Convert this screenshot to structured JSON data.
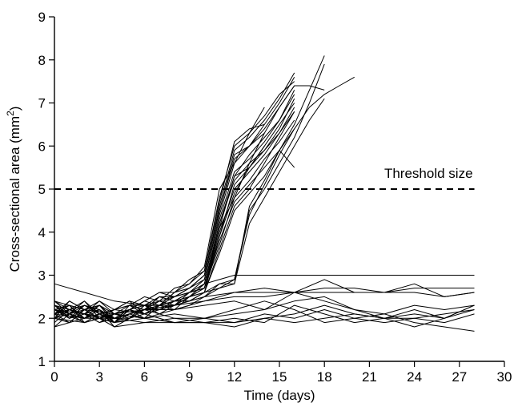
{
  "chart_data": {
    "type": "line",
    "xlabel": "Time (days)",
    "ylabel_prefix": "Cross-sectional area (mm",
    "ylabel_sup": "2",
    "ylabel_suffix": ")",
    "xlim": [
      0,
      30
    ],
    "ylim": [
      1,
      9
    ],
    "x_ticks": [
      0,
      3,
      6,
      9,
      12,
      15,
      18,
      21,
      24,
      27,
      30
    ],
    "y_ticks": [
      1,
      2,
      3,
      4,
      5,
      6,
      7,
      8,
      9
    ],
    "grid": false,
    "threshold": {
      "y": 5,
      "x_range": [
        0,
        28
      ],
      "label": "Threshold size"
    },
    "series_color": "#000000",
    "series": [
      {
        "x": [
          0,
          1,
          2,
          3,
          4,
          5,
          6,
          7,
          8,
          9,
          10,
          11,
          12,
          13,
          14,
          15,
          16
        ],
        "y": [
          2.1,
          2.3,
          2.0,
          2.2,
          1.9,
          2.1,
          2.2,
          2.4,
          2.3,
          2.5,
          2.7,
          3.9,
          5.1,
          5.5,
          5.9,
          6.4,
          7.1
        ]
      },
      {
        "x": [
          0,
          1,
          2,
          3,
          4,
          5,
          6,
          7,
          8,
          9,
          10,
          11,
          12,
          13,
          14,
          15,
          16
        ],
        "y": [
          2.3,
          2.1,
          2.4,
          2.0,
          2.2,
          2.3,
          2.1,
          2.3,
          2.5,
          2.6,
          2.9,
          4.4,
          5.6,
          6.0,
          6.5,
          7.0,
          7.6
        ]
      },
      {
        "x": [
          0,
          1,
          2,
          3,
          4,
          5,
          6,
          7,
          8,
          9,
          10,
          11,
          12,
          13,
          14,
          15,
          16
        ],
        "y": [
          1.9,
          2.2,
          2.1,
          1.9,
          2.1,
          2.0,
          2.3,
          2.2,
          2.4,
          2.4,
          2.6,
          3.6,
          4.6,
          5.0,
          5.6,
          6.2,
          6.8
        ]
      },
      {
        "x": [
          0,
          1,
          2,
          3,
          4,
          5,
          6,
          7,
          8,
          9,
          10,
          11,
          12,
          13,
          14,
          15,
          16
        ],
        "y": [
          2.2,
          2.0,
          2.3,
          2.1,
          2.0,
          2.2,
          2.4,
          2.3,
          2.6,
          2.7,
          3.0,
          4.6,
          5.9,
          6.2,
          6.6,
          7.1,
          7.7
        ]
      },
      {
        "x": [
          0,
          1,
          2,
          3,
          4,
          5,
          6,
          7,
          8,
          9,
          10,
          11,
          12,
          13,
          14,
          15,
          16
        ],
        "y": [
          2.0,
          2.4,
          2.2,
          2.3,
          2.0,
          2.1,
          2.0,
          2.3,
          2.2,
          2.5,
          2.8,
          4.1,
          5.3,
          5.8,
          6.2,
          6.6,
          7.3
        ]
      },
      {
        "x": [
          0,
          1,
          2,
          3,
          4,
          5,
          6,
          7,
          8,
          9,
          10,
          11,
          12,
          13,
          14,
          15,
          16
        ],
        "y": [
          2.4,
          2.2,
          2.1,
          2.0,
          1.9,
          2.3,
          2.2,
          2.5,
          2.4,
          2.6,
          2.7,
          3.7,
          4.8,
          5.2,
          5.7,
          6.1,
          6.6
        ]
      },
      {
        "x": [
          0,
          1,
          2,
          3,
          4,
          5,
          6,
          7,
          8,
          9,
          10,
          11,
          12,
          13,
          14,
          15,
          16
        ],
        "y": [
          2.1,
          1.9,
          2.2,
          2.3,
          2.1,
          2.0,
          2.3,
          2.1,
          2.3,
          2.4,
          2.6,
          3.9,
          4.9,
          5.5,
          6.0,
          6.5,
          7.0
        ]
      },
      {
        "x": [
          0,
          1,
          2,
          3,
          4,
          5,
          6,
          7,
          8,
          9,
          10,
          11,
          12,
          13,
          14,
          15,
          16
        ],
        "y": [
          2.2,
          2.3,
          1.9,
          2.1,
          2.2,
          2.4,
          2.1,
          2.3,
          2.6,
          2.8,
          3.1,
          4.8,
          6.0,
          6.3,
          6.7,
          7.2,
          7.5
        ]
      },
      {
        "x": [
          0,
          1,
          2,
          3,
          4,
          5,
          6,
          7,
          8,
          9,
          10,
          11,
          12,
          13,
          14,
          15,
          16
        ],
        "y": [
          1.8,
          2.1,
          2.0,
          2.2,
          1.8,
          2.0,
          2.2,
          2.2,
          2.3,
          2.5,
          2.6,
          3.5,
          4.5,
          4.9,
          5.3,
          5.9,
          6.4
        ]
      },
      {
        "x": [
          0,
          1,
          2,
          3,
          4,
          5,
          6,
          7,
          8,
          9,
          10,
          11,
          12,
          13,
          14,
          15,
          16
        ],
        "y": [
          2.3,
          2.0,
          2.2,
          2.4,
          2.1,
          2.2,
          2.4,
          2.6,
          2.5,
          2.7,
          2.9,
          4.3,
          5.4,
          5.7,
          6.1,
          6.6,
          7.2
        ]
      },
      {
        "x": [
          0,
          1,
          2,
          3,
          4,
          5,
          6,
          7,
          8,
          9,
          10,
          11,
          12,
          13,
          14,
          15,
          16
        ],
        "y": [
          2.0,
          2.2,
          2.4,
          2.1,
          1.9,
          2.2,
          2.1,
          2.2,
          2.4,
          2.5,
          2.8,
          4.2,
          5.2,
          5.6,
          5.9,
          6.3,
          6.9
        ]
      },
      {
        "x": [
          0,
          1,
          2,
          3,
          4,
          5,
          6,
          7,
          8,
          9,
          10,
          11,
          12,
          13,
          14,
          15,
          16
        ],
        "y": [
          2.2,
          2.1,
          2.0,
          2.3,
          2.0,
          2.1,
          2.2,
          2.4,
          2.3,
          2.6,
          2.7,
          4.0,
          5.0,
          5.4,
          5.8,
          6.3,
          6.8
        ]
      },
      {
        "x": [
          0,
          1,
          2,
          3,
          4,
          5,
          6,
          7,
          8,
          9,
          10,
          11,
          12,
          13,
          14,
          15,
          16
        ],
        "y": [
          2.1,
          2.3,
          2.2,
          2.0,
          2.1,
          2.3,
          2.3,
          2.3,
          2.5,
          2.7,
          3.0,
          4.5,
          5.7,
          6.0,
          6.4,
          6.9,
          7.4
        ]
      },
      {
        "x": [
          0,
          1,
          2,
          3,
          4,
          5,
          6,
          7,
          8,
          9,
          10,
          11,
          12,
          13,
          14,
          15,
          16
        ],
        "y": [
          2.4,
          2.1,
          2.3,
          2.2,
          2.0,
          2.0,
          2.2,
          2.5,
          2.4,
          2.5,
          2.7,
          3.8,
          4.7,
          5.1,
          5.5,
          5.9,
          5.5
        ]
      },
      {
        "x": [
          0,
          1,
          2,
          3,
          4,
          5,
          6,
          7,
          8,
          9,
          10,
          11,
          12,
          13,
          14
        ],
        "y": [
          2.3,
          2.2,
          2.1,
          2.4,
          2.2,
          2.3,
          2.5,
          2.4,
          2.7,
          2.8,
          3.2,
          5.0,
          5.6,
          6.3,
          6.9
        ]
      },
      {
        "x": [
          0,
          1,
          2,
          3,
          4,
          5,
          6,
          7,
          8,
          9,
          10,
          11,
          12,
          13,
          14
        ],
        "y": [
          2.1,
          2.4,
          2.2,
          2.3,
          2.1,
          2.2,
          2.4,
          2.6,
          2.6,
          2.9,
          3.1,
          4.7,
          6.1,
          6.4,
          6.5
        ]
      },
      {
        "x": [
          0,
          1,
          2,
          3,
          4,
          5,
          6,
          7,
          8,
          9,
          10,
          11,
          12,
          13,
          14
        ],
        "y": [
          2.2,
          2.0,
          2.3,
          2.1,
          2.2,
          2.4,
          2.3,
          2.5,
          2.5,
          2.7,
          3.0,
          4.5,
          5.8,
          6.0,
          6.3
        ]
      },
      {
        "x": [
          0,
          1,
          2,
          3,
          4,
          5,
          6,
          7,
          8,
          9,
          10,
          11,
          12,
          13,
          14
        ],
        "y": [
          2.0,
          2.2,
          2.1,
          2.2,
          2.0,
          2.1,
          2.2,
          2.3,
          2.4,
          2.6,
          2.8,
          4.2,
          5.3,
          5.5,
          6.0
        ]
      },
      {
        "x": [
          0,
          1,
          2,
          3,
          4,
          5,
          6,
          7,
          8,
          9,
          10,
          11,
          12,
          13,
          14,
          15,
          16,
          17,
          18
        ],
        "y": [
          2.0,
          2.1,
          1.9,
          2.0,
          1.8,
          2.0,
          2.1,
          2.2,
          2.2,
          2.3,
          2.5,
          2.7,
          2.8,
          4.6,
          5.2,
          5.9,
          6.5,
          7.3,
          8.1
        ]
      },
      {
        "x": [
          0,
          1,
          2,
          3,
          4,
          5,
          6,
          7,
          8,
          9,
          10,
          11,
          12,
          13,
          14,
          15,
          16,
          17,
          18
        ],
        "y": [
          2.2,
          2.0,
          2.1,
          1.9,
          2.0,
          2.1,
          2.2,
          2.2,
          2.3,
          2.4,
          2.5,
          2.8,
          2.9,
          4.5,
          5.0,
          5.6,
          6.2,
          7.0,
          7.9
        ]
      },
      {
        "x": [
          0,
          1,
          2,
          3,
          4,
          5,
          6,
          7,
          8,
          9,
          10,
          11,
          12,
          13,
          14,
          15,
          16,
          17,
          18
        ],
        "y": [
          2.3,
          2.1,
          2.0,
          2.2,
          1.9,
          2.2,
          2.0,
          2.3,
          2.4,
          2.4,
          2.6,
          2.8,
          2.8,
          4.2,
          4.8,
          5.4,
          6.0,
          6.6,
          7.1
        ]
      },
      {
        "x": [
          0,
          1,
          2,
          3,
          4,
          5,
          6,
          7,
          8,
          9,
          10,
          11,
          12,
          13,
          14,
          15,
          16,
          17,
          18,
          19,
          20
        ],
        "y": [
          2.1,
          2.2,
          2.0,
          2.1,
          1.9,
          2.0,
          2.3,
          2.2,
          2.3,
          2.5,
          2.6,
          2.7,
          2.9,
          4.4,
          5.1,
          5.8,
          6.4,
          6.9,
          7.2,
          7.4,
          7.6
        ]
      },
      {
        "x": [
          0,
          1,
          2,
          3,
          4,
          5,
          6,
          7,
          8,
          9,
          10,
          11,
          12,
          13,
          14,
          15,
          16,
          17,
          18
        ],
        "y": [
          2.0,
          1.9,
          2.2,
          2.0,
          2.1,
          2.2,
          2.1,
          2.3,
          2.4,
          2.6,
          2.7,
          4.1,
          4.8,
          5.6,
          6.3,
          6.9,
          7.4,
          7.4,
          7.3
        ]
      },
      {
        "x": [
          0,
          1,
          2,
          3,
          4,
          5,
          6,
          7,
          8,
          9,
          10,
          11,
          12,
          13,
          14,
          15,
          16,
          17,
          18,
          19,
          20,
          21,
          22,
          23,
          24,
          25,
          26,
          27,
          28
        ],
        "y": [
          2.2,
          2.0,
          2.1,
          2.3,
          1.9,
          2.2,
          2.3,
          2.4,
          2.5,
          2.6,
          2.8,
          2.9,
          3.0,
          3.0,
          3.0,
          3.0,
          3.0,
          3.0,
          3.0,
          3.0,
          3.0,
          3.0,
          3.0,
          3.0,
          3.0,
          3.0,
          3.0,
          3.0,
          3.0
        ]
      },
      {
        "x": [
          0,
          2,
          4,
          6,
          8,
          10,
          12,
          14,
          16,
          18,
          20,
          22,
          24,
          26,
          28
        ],
        "y": [
          2.1,
          2.3,
          2.0,
          2.2,
          2.3,
          2.4,
          2.6,
          2.6,
          2.6,
          2.7,
          2.7,
          2.6,
          2.7,
          2.7,
          2.7
        ]
      },
      {
        "x": [
          0,
          2,
          4,
          6,
          8,
          10,
          12,
          14,
          16,
          18,
          20,
          22,
          24,
          26,
          28
        ],
        "y": [
          2.4,
          2.2,
          2.1,
          2.2,
          2.2,
          2.4,
          2.5,
          2.5,
          2.6,
          2.6,
          2.6,
          2.6,
          2.6,
          2.5,
          2.6
        ]
      },
      {
        "x": [
          0,
          2,
          4,
          6,
          8,
          10,
          12,
          14,
          16,
          18,
          20,
          22,
          24,
          26,
          28
        ],
        "y": [
          2.8,
          2.6,
          2.4,
          2.3,
          2.3,
          2.5,
          2.6,
          2.7,
          2.6,
          2.9,
          2.6,
          2.6,
          2.8,
          2.5,
          2.6
        ]
      },
      {
        "x": [
          0,
          2,
          4,
          6,
          8,
          10,
          12,
          14,
          16,
          18,
          20,
          22,
          24,
          26,
          28
        ],
        "y": [
          2.0,
          1.9,
          2.1,
          2.0,
          2.2,
          2.3,
          2.4,
          2.2,
          2.4,
          2.5,
          2.2,
          2.1,
          2.3,
          2.2,
          2.3
        ]
      },
      {
        "x": [
          0,
          2,
          4,
          6,
          8,
          10,
          12,
          14,
          16,
          18,
          20,
          22,
          24,
          26,
          28
        ],
        "y": [
          2.2,
          2.1,
          1.9,
          2.0,
          2.1,
          2.0,
          2.1,
          2.2,
          2.6,
          2.4,
          2.2,
          2.0,
          2.0,
          2.1,
          2.2
        ]
      },
      {
        "x": [
          0,
          2,
          4,
          6,
          8,
          10,
          12,
          14,
          16,
          18,
          20,
          22,
          24,
          26,
          28
        ],
        "y": [
          1.8,
          2.0,
          2.0,
          1.9,
          2.0,
          2.0,
          1.9,
          2.1,
          2.0,
          2.2,
          2.0,
          2.1,
          1.9,
          1.8,
          1.7
        ]
      },
      {
        "x": [
          0,
          2,
          4,
          6,
          8,
          10,
          12,
          14,
          16,
          18,
          20,
          22,
          24,
          26,
          28
        ],
        "y": [
          2.1,
          2.0,
          2.2,
          2.1,
          1.9,
          1.9,
          2.0,
          1.9,
          2.3,
          2.1,
          1.9,
          2.0,
          2.2,
          2.0,
          2.3
        ]
      },
      {
        "x": [
          0,
          2,
          4,
          6,
          8,
          10,
          12,
          14,
          16,
          18,
          20,
          22,
          24,
          26,
          28
        ],
        "y": [
          2.3,
          2.1,
          2.0,
          2.2,
          2.0,
          1.9,
          1.9,
          2.0,
          1.9,
          2.0,
          2.1,
          2.0,
          2.1,
          2.0,
          2.2
        ]
      },
      {
        "x": [
          0,
          2,
          4,
          6,
          8,
          10,
          12,
          14,
          16,
          18,
          20,
          22,
          24,
          26,
          28
        ],
        "y": [
          2.0,
          2.2,
          1.8,
          1.9,
          1.9,
          2.0,
          2.2,
          2.4,
          2.2,
          1.9,
          2.0,
          1.9,
          2.0,
          1.9,
          2.1
        ]
      },
      {
        "x": [
          0,
          2,
          4,
          6,
          8,
          10,
          12,
          14,
          16,
          18,
          20,
          22,
          24,
          26,
          28
        ],
        "y": [
          2.2,
          1.9,
          2.1,
          2.0,
          1.9,
          1.9,
          1.8,
          2.0,
          2.1,
          2.3,
          2.1,
          2.0,
          1.8,
          2.0,
          2.3
        ]
      }
    ]
  }
}
